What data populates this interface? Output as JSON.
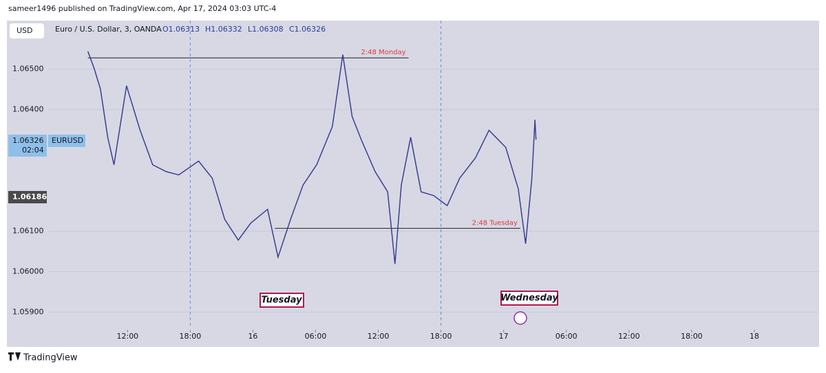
{
  "header": {
    "publisher": "sameer1496 published on TradingView.com, Apr 17, 2024 03:03 UTC-4"
  },
  "toolbar": {
    "currency": "USD"
  },
  "legend": {
    "symbol": "Euro / U.S. Dollar, 3, OANDA",
    "open": "O1.06313",
    "high": "H1.06332",
    "low": "L1.06308",
    "close": "C1.06326"
  },
  "badges": {
    "last_price": "1.06326",
    "countdown": "02:04",
    "symbol": "EURUSD",
    "crosshair_price": "1.06186"
  },
  "chart_data": {
    "type": "line",
    "color": "#3a3f8f",
    "x": [
      8.2,
      8.8,
      9.4,
      10.1,
      10.7,
      11.9,
      13.2,
      14.4,
      15.7,
      16.9,
      18.8,
      20.1,
      21.3,
      22.6,
      23.8,
      25.4,
      26.4,
      27.6,
      28.8,
      30.1,
      31.6,
      32.6,
      33.5,
      34.4,
      35.7,
      36.9,
      37.6,
      38.2,
      39.1,
      40.1,
      41.3,
      42.6,
      43.8,
      45.3,
      46.6,
      48.2,
      49.4,
      50.1,
      50.7,
      51.0,
      51.1
    ],
    "series": [
      {
        "name": "EURUSD",
        "color": "#3a3f8f",
        "values": [
          1.06544,
          1.06502,
          1.06451,
          1.06332,
          1.06264,
          1.06459,
          1.06349,
          1.06264,
          1.06247,
          1.06239,
          1.06273,
          1.06231,
          1.06129,
          1.06078,
          1.0612,
          1.06154,
          1.06036,
          1.06129,
          1.06214,
          1.06264,
          1.06358,
          1.06536,
          1.06383,
          1.06324,
          1.06247,
          1.06197,
          1.06019,
          1.06214,
          1.06332,
          1.06197,
          1.06188,
          1.06163,
          1.06231,
          1.06281,
          1.06349,
          1.06307,
          1.06205,
          1.06069,
          1.06231,
          1.06375,
          1.06326
        ]
      }
    ],
    "xlim": [
      4.4,
      78.2
    ],
    "xticks": [
      {
        "value": 12,
        "label": "12:00"
      },
      {
        "value": 18,
        "label": "18:00"
      },
      {
        "value": 24,
        "label": "16"
      },
      {
        "value": 30,
        "label": "06:00"
      },
      {
        "value": 36,
        "label": "12:00"
      },
      {
        "value": 42,
        "label": "18:00"
      },
      {
        "value": 48,
        "label": "17"
      },
      {
        "value": 54,
        "label": "06:00"
      },
      {
        "value": 60,
        "label": "12:00"
      },
      {
        "value": 66,
        "label": "18:00"
      },
      {
        "value": 72,
        "label": "18"
      }
    ],
    "ylim": [
      1.0586,
      1.0662
    ],
    "yticks": [
      {
        "value": 1.059,
        "label": "1.05900"
      },
      {
        "value": 1.06,
        "label": "1.06000"
      },
      {
        "value": 1.061,
        "label": "1.06100"
      },
      {
        "value": 1.064,
        "label": "1.06400"
      },
      {
        "value": 1.065,
        "label": "1.06500"
      }
    ],
    "session_lines": [
      18,
      42
    ],
    "levels": [
      {
        "text": "2:48 Monday",
        "value": 1.06528,
        "x": [
          8.2,
          38.9
        ]
      },
      {
        "text": "2:48 Tuesday",
        "value": 1.06107,
        "x": [
          26.1,
          49.6
        ]
      }
    ],
    "day_labels": [
      "Tuesday",
      "Wednesday"
    ]
  },
  "footer": {
    "brand": "TradingView"
  }
}
